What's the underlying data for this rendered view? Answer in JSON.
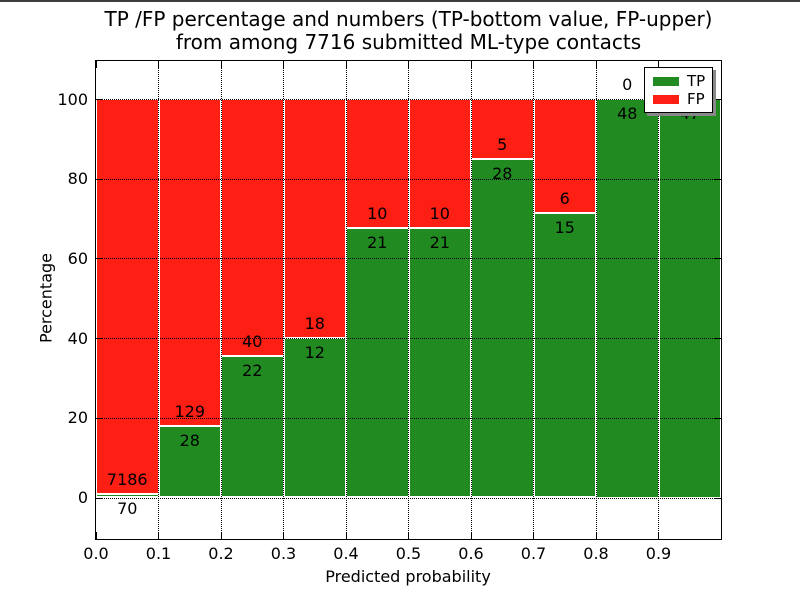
{
  "title": {
    "line1": "TP /FP percentage and numbers (TP-bottom value, FP-upper)",
    "line2": "from among 7716 submitted ML-type contacts"
  },
  "colors": {
    "tp": "#218a21",
    "fp": "#fd1e14",
    "bar_edge": "#ffffff",
    "grid": "#000000",
    "text": "#000000"
  },
  "chart_data": {
    "type": "bar",
    "stacked": true,
    "normalized": "each 0.1-wide bin scaled to 100%",
    "title": "TP /FP percentage and numbers (TP-bottom value, FP-upper) from among 7716 submitted ML-type contacts",
    "xlabel": "Predicted probability",
    "ylabel": "Percentage",
    "xlim": [
      0.0,
      1.0
    ],
    "ylim": [
      0,
      100
    ],
    "grid": true,
    "x_tick_labels": [
      "0.0",
      "0.1",
      "0.2",
      "0.3",
      "0.4",
      "0.5",
      "0.6",
      "0.7",
      "0.8",
      "0.9"
    ],
    "y_ticks": [
      0,
      20,
      40,
      60,
      80,
      100
    ],
    "bin_edges": [
      0.0,
      0.1,
      0.2,
      0.3,
      0.4,
      0.5,
      0.6,
      0.7,
      0.8,
      0.9,
      1.0
    ],
    "legend": {
      "position": "upper right",
      "entries": [
        "TP",
        "FP"
      ]
    },
    "series": [
      {
        "name": "TP",
        "role": "bottom",
        "counts": [
          70,
          28,
          22,
          12,
          21,
          21,
          28,
          15,
          48,
          47
        ]
      },
      {
        "name": "FP",
        "role": "top",
        "counts": [
          7186,
          129,
          40,
          18,
          10,
          10,
          5,
          6,
          0,
          0
        ]
      }
    ],
    "tp_percent": [
      0.96,
      17.83,
      35.48,
      40.0,
      67.74,
      67.74,
      84.85,
      71.43,
      100.0,
      100.0
    ],
    "fp_label_visible": [
      true,
      true,
      true,
      true,
      true,
      true,
      true,
      true,
      true,
      false
    ],
    "tp_label_visible": [
      true,
      true,
      true,
      true,
      true,
      true,
      true,
      true,
      true,
      true
    ]
  }
}
